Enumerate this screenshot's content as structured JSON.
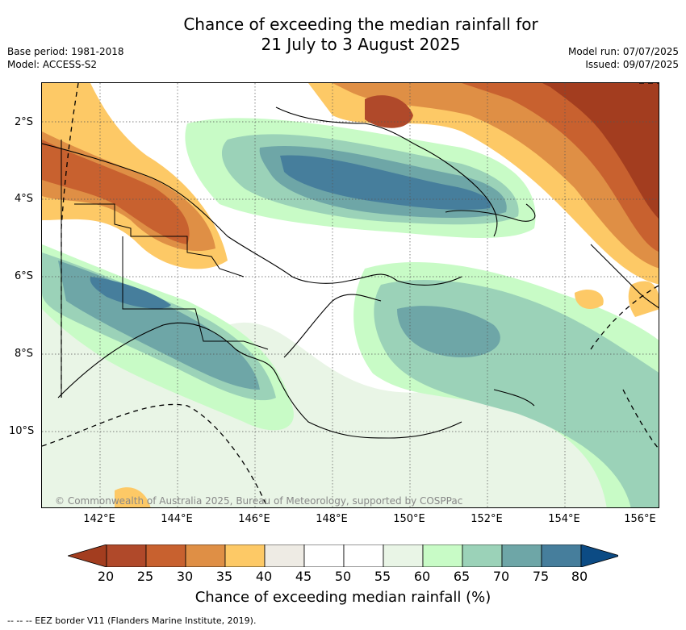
{
  "title_line1": "Chance of exceeding the median rainfall for",
  "title_line2": "21 July to 3 August 2025",
  "base_period": "Base period: 1981-2018",
  "model": "Model: ACCESS-S2",
  "model_run": "Model run: 07/07/2025",
  "issued": "Issued: 09/07/2025",
  "lat_labels": [
    "2°S",
    "4°S",
    "6°S",
    "8°S",
    "10°S"
  ],
  "lon_labels": [
    "142°E",
    "144°E",
    "146°E",
    "148°E",
    "150°E",
    "152°E",
    "154°E",
    "156°E"
  ],
  "credit": "© Commonwealth of Australia 2025, Bureau of Meteorology, supported by COSPPac",
  "colorbar": {
    "ticks": [
      "20",
      "25",
      "30",
      "35",
      "40",
      "45",
      "50",
      "55",
      "60",
      "65",
      "70",
      "75",
      "80"
    ],
    "colors": [
      "#a33d1f",
      "#b0492a",
      "#c8612f",
      "#df8f45",
      "#fdc966",
      "#eeebe4",
      "#ffffff",
      "#ffffff",
      "#e9f5e6",
      "#c8fbc6",
      "#9bd2b8",
      "#6ea6a7",
      "#467e9c",
      "#0c4b84"
    ],
    "label": "Chance of exceeding median rainfall (%)"
  },
  "footer": "-- -- -- EEZ border V11 (Flanders Marine Institute, 2019)."
}
